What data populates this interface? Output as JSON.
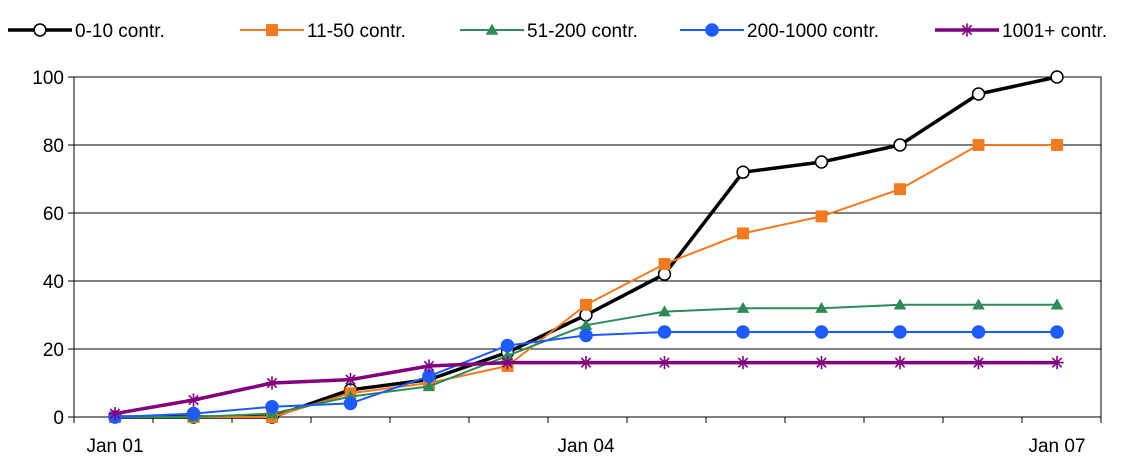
{
  "chart_data": {
    "type": "line",
    "title": "",
    "xlabel": "",
    "ylabel": "",
    "ylim": [
      0,
      100
    ],
    "yticks": [
      0,
      20,
      40,
      60,
      80,
      100
    ],
    "x_tick_labels": [
      "Jan 01",
      "Jan 04",
      "Jan 07"
    ],
    "grid": "horizontal",
    "legend_position": "top",
    "x": [
      "Jan 01",
      "Jul 01",
      "Jan 02",
      "Jul 02",
      "Jan 03",
      "Jul 03",
      "Jan 04",
      "Jul 04",
      "Jan 05",
      "Jul 05",
      "Jan 06",
      "Jul 06",
      "Jan 07"
    ],
    "series": [
      {
        "name": "0-10 contr.",
        "color": "#000000",
        "marker": "open-circle",
        "values": [
          0,
          0,
          0,
          8,
          11,
          19,
          30,
          42,
          72,
          75,
          80,
          95,
          100
        ]
      },
      {
        "name": "11-50 contr.",
        "color": "#F47A20",
        "marker": "square",
        "values": [
          0,
          0,
          0,
          7,
          10,
          15,
          33,
          45,
          54,
          59,
          67,
          80,
          80
        ]
      },
      {
        "name": "51-200 contr.",
        "color": "#2E8B57",
        "marker": "triangle",
        "values": [
          0,
          0,
          1,
          6,
          9,
          18,
          27,
          31,
          32,
          32,
          33,
          33,
          33
        ]
      },
      {
        "name": "200-1000 contr.",
        "color": "#1E5BFF",
        "marker": "filled-circle",
        "values": [
          0,
          1,
          3,
          4,
          12,
          21,
          24,
          25,
          25,
          25,
          25,
          25,
          25
        ]
      },
      {
        "name": "1001+ contr.",
        "color": "#800080",
        "marker": "star",
        "values": [
          1,
          5,
          10,
          11,
          15,
          16,
          16,
          16,
          16,
          16,
          16,
          16,
          16
        ]
      }
    ]
  }
}
